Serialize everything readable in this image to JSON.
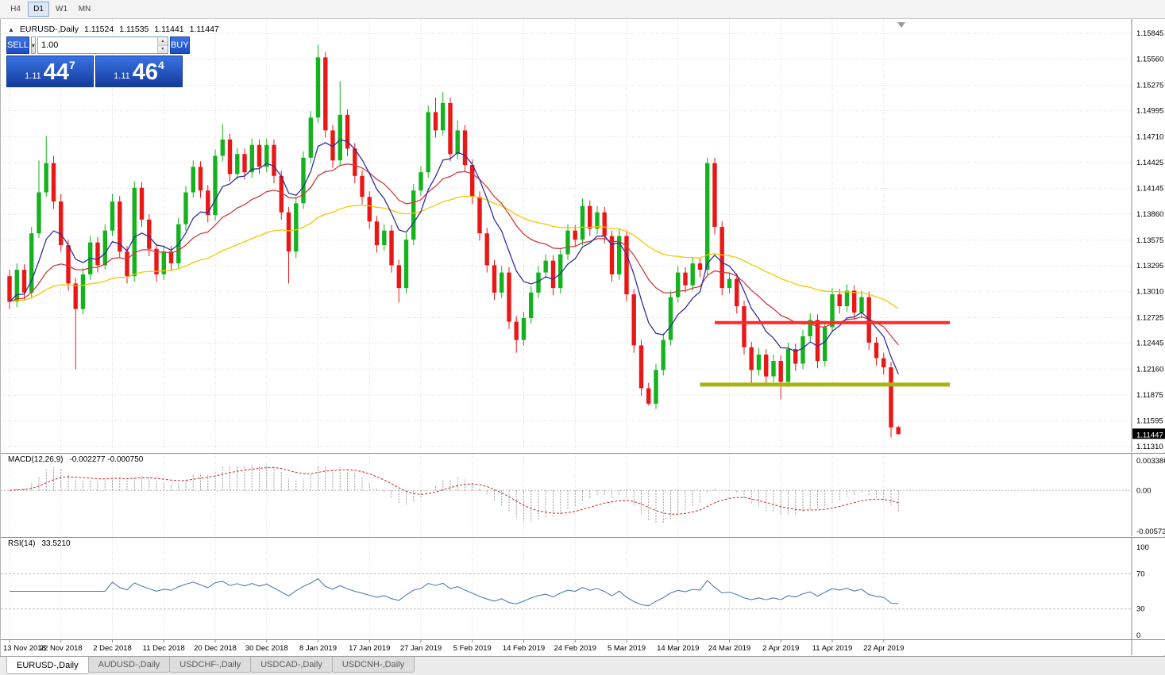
{
  "toolbar": {
    "timeframes": [
      {
        "label": "H4",
        "active": false
      },
      {
        "label": "D1",
        "active": true
      },
      {
        "label": "W1",
        "active": false
      },
      {
        "label": "MN",
        "active": false
      }
    ]
  },
  "chart": {
    "title_symbol": "EURUSD-,Daily",
    "ohlc": {
      "open": "1.11524",
      "high": "1.11535",
      "low": "1.11441",
      "close": "1.11447"
    },
    "current_price_tag": "1.11447",
    "price_axis_labels": [
      "1.15845",
      "1.15560",
      "1.15275",
      "1.14995",
      "1.14710",
      "1.14425",
      "1.14145",
      "1.13860",
      "1.13575",
      "1.13295",
      "1.13010",
      "1.12725",
      "1.12445",
      "1.12160",
      "1.11875",
      "1.11595",
      "1.11310"
    ],
    "price_axis_range": {
      "top": 1.15845,
      "bottom": 1.1131
    },
    "date_labels": [
      "13 Nov 2018",
      "22 Nov 2018",
      "2 Dec 2018",
      "11 Dec 2018",
      "20 Dec 2018",
      "30 Dec 2018",
      "8 Jan 2019",
      "17 Jan 2019",
      "27 Jan 2019",
      "5 Feb 2019",
      "14 Feb 2019",
      "24 Feb 2019",
      "5 Mar 2019",
      "14 Mar 2019",
      "24 Mar 2019",
      "2 Apr 2019",
      "11 Apr 2019",
      "22 Apr 2019"
    ],
    "candles_per_tick": 7
  },
  "one_click": {
    "sell_label": "SELL",
    "buy_label": "BUY",
    "volume": "1.00",
    "sell_price": {
      "small": "1.11",
      "big": "44",
      "sup": "7"
    },
    "buy_price": {
      "small": "1.11",
      "big": "46",
      "sup": "4"
    }
  },
  "chart_data": {
    "type": "candlestick",
    "symbol": "EURUSD-",
    "timeframe": "Daily",
    "colors": {
      "up": "#14b31e",
      "down": "#ea1717"
    },
    "moving_averages": [
      {
        "period": 8,
        "method": "ema",
        "color": "#2F2F9E"
      },
      {
        "period": 21,
        "method": "ema",
        "color": "#CE3C3C"
      },
      {
        "period": 55,
        "method": "ema",
        "color": "#F0CA00"
      }
    ],
    "hlines": [
      {
        "name": "resistance-line",
        "price": 1.1267,
        "color": "#FF2A2A",
        "width": 4,
        "from_index": 96,
        "to_index": 128
      },
      {
        "name": "support-line",
        "price": 1.1199,
        "color": "#A9B313",
        "width": 5,
        "from_index": 94,
        "to_index": 128
      }
    ],
    "candles": [
      [
        1.1318,
        1.1325,
        1.1282,
        1.129
      ],
      [
        1.129,
        1.1332,
        1.1284,
        1.1325
      ],
      [
        1.1325,
        1.1331,
        1.1292,
        1.13
      ],
      [
        1.13,
        1.1372,
        1.1295,
        1.1365
      ],
      [
        1.1365,
        1.1445,
        1.136,
        1.141
      ],
      [
        1.141,
        1.1472,
        1.1405,
        1.1442
      ],
      [
        1.1442,
        1.145,
        1.1392,
        1.14
      ],
      [
        1.14,
        1.1408,
        1.1345,
        1.1352
      ],
      [
        1.1352,
        1.1358,
        1.1302,
        1.131
      ],
      [
        1.131,
        1.1316,
        1.1216,
        1.1282
      ],
      [
        1.1282,
        1.1327,
        1.1276,
        1.132
      ],
      [
        1.132,
        1.1362,
        1.1314,
        1.1355
      ],
      [
        1.1355,
        1.1361,
        1.1322,
        1.133
      ],
      [
        1.133,
        1.1375,
        1.1325,
        1.1368
      ],
      [
        1.1368,
        1.1408,
        1.1362,
        1.14
      ],
      [
        1.14,
        1.1406,
        1.1338,
        1.1345
      ],
      [
        1.1345,
        1.1351,
        1.131,
        1.1318
      ],
      [
        1.1318,
        1.1422,
        1.1312,
        1.1415
      ],
      [
        1.1415,
        1.1421,
        1.1372,
        1.138
      ],
      [
        1.138,
        1.1386,
        1.134,
        1.1348
      ],
      [
        1.1348,
        1.1354,
        1.1312,
        1.132
      ],
      [
        1.132,
        1.1352,
        1.1314,
        1.1345
      ],
      [
        1.1345,
        1.1351,
        1.1324,
        1.1332
      ],
      [
        1.1332,
        1.1382,
        1.1326,
        1.1375
      ],
      [
        1.1375,
        1.1417,
        1.1368,
        1.141
      ],
      [
        1.141,
        1.1445,
        1.1404,
        1.1438
      ],
      [
        1.1438,
        1.1444,
        1.1404,
        1.1412
      ],
      [
        1.1412,
        1.1418,
        1.1377,
        1.1385
      ],
      [
        1.1385,
        1.1457,
        1.1379,
        1.145
      ],
      [
        1.145,
        1.1485,
        1.1444,
        1.1468
      ],
      [
        1.1468,
        1.1474,
        1.1422,
        1.143
      ],
      [
        1.143,
        1.1459,
        1.1424,
        1.1452
      ],
      [
        1.1452,
        1.1458,
        1.1424,
        1.1432
      ],
      [
        1.1432,
        1.1469,
        1.1426,
        1.1462
      ],
      [
        1.1462,
        1.1468,
        1.143,
        1.1438
      ],
      [
        1.1438,
        1.1469,
        1.1432,
        1.1462
      ],
      [
        1.1462,
        1.1468,
        1.142,
        1.1428
      ],
      [
        1.1428,
        1.1434,
        1.138,
        1.1388
      ],
      [
        1.1388,
        1.1394,
        1.131,
        1.1345
      ],
      [
        1.1345,
        1.1405,
        1.1338,
        1.1398
      ],
      [
        1.1398,
        1.1455,
        1.1392,
        1.1448
      ],
      [
        1.1448,
        1.1499,
        1.1442,
        1.1492
      ],
      [
        1.1492,
        1.1572,
        1.1486,
        1.1558
      ],
      [
        1.1558,
        1.1564,
        1.147,
        1.1478
      ],
      [
        1.1478,
        1.1484,
        1.1437,
        1.1445
      ],
      [
        1.1445,
        1.1532,
        1.144,
        1.1495
      ],
      [
        1.1495,
        1.1501,
        1.145,
        1.1458
      ],
      [
        1.1458,
        1.1464,
        1.142,
        1.1428
      ],
      [
        1.1428,
        1.1434,
        1.1397,
        1.1405
      ],
      [
        1.1405,
        1.1411,
        1.137,
        1.1378
      ],
      [
        1.1378,
        1.1384,
        1.1344,
        1.1352
      ],
      [
        1.1352,
        1.1375,
        1.1346,
        1.1368
      ],
      [
        1.1368,
        1.1374,
        1.1322,
        1.133
      ],
      [
        1.133,
        1.1336,
        1.1289,
        1.1305
      ],
      [
        1.1305,
        1.1365,
        1.1299,
        1.1358
      ],
      [
        1.1358,
        1.1419,
        1.1352,
        1.1412
      ],
      [
        1.1412,
        1.1439,
        1.1406,
        1.1432
      ],
      [
        1.1432,
        1.1505,
        1.1426,
        1.1498
      ],
      [
        1.1498,
        1.1514,
        1.147,
        1.1478
      ],
      [
        1.1478,
        1.152,
        1.1472,
        1.1508
      ],
      [
        1.1508,
        1.1514,
        1.1444,
        1.1452
      ],
      [
        1.1452,
        1.1489,
        1.1446,
        1.1478
      ],
      [
        1.1478,
        1.1484,
        1.1432,
        1.144
      ],
      [
        1.144,
        1.1446,
        1.1397,
        1.1405
      ],
      [
        1.1405,
        1.1411,
        1.1357,
        1.1365
      ],
      [
        1.1365,
        1.1371,
        1.1322,
        1.133
      ],
      [
        1.133,
        1.1336,
        1.1292,
        1.13
      ],
      [
        1.13,
        1.1329,
        1.1294,
        1.1322
      ],
      [
        1.1322,
        1.1328,
        1.126,
        1.1268
      ],
      [
        1.1268,
        1.1274,
        1.1234,
        1.1248
      ],
      [
        1.1248,
        1.1279,
        1.1242,
        1.1272
      ],
      [
        1.1272,
        1.1307,
        1.1266,
        1.13
      ],
      [
        1.13,
        1.1329,
        1.1294,
        1.1322
      ],
      [
        1.1322,
        1.1342,
        1.1316,
        1.1335
      ],
      [
        1.1335,
        1.1341,
        1.1297,
        1.1305
      ],
      [
        1.1305,
        1.1349,
        1.1299,
        1.1342
      ],
      [
        1.1342,
        1.1375,
        1.1336,
        1.1368
      ],
      [
        1.1368,
        1.1374,
        1.135,
        1.1358
      ],
      [
        1.1358,
        1.1403,
        1.1352,
        1.1395
      ],
      [
        1.1395,
        1.1401,
        1.1362,
        1.137
      ],
      [
        1.137,
        1.1395,
        1.1364,
        1.1388
      ],
      [
        1.1388,
        1.1394,
        1.1354,
        1.1362
      ],
      [
        1.1362,
        1.1368,
        1.1312,
        1.132
      ],
      [
        1.132,
        1.1369,
        1.1314,
        1.1362
      ],
      [
        1.1362,
        1.1368,
        1.129,
        1.1298
      ],
      [
        1.1298,
        1.1304,
        1.1234,
        1.1242
      ],
      [
        1.1242,
        1.1248,
        1.1187,
        1.1195
      ],
      [
        1.1195,
        1.1201,
        1.1176,
        1.1178
      ],
      [
        1.1178,
        1.1222,
        1.1172,
        1.1215
      ],
      [
        1.1215,
        1.1255,
        1.1209,
        1.1248
      ],
      [
        1.1248,
        1.1302,
        1.1242,
        1.1295
      ],
      [
        1.1295,
        1.1329,
        1.1289,
        1.1322
      ],
      [
        1.1322,
        1.1328,
        1.13,
        1.1308
      ],
      [
        1.1308,
        1.1339,
        1.1302,
        1.1332
      ],
      [
        1.1332,
        1.1338,
        1.1317,
        1.1325
      ],
      [
        1.1325,
        1.1448,
        1.1319,
        1.1442
      ],
      [
        1.1442,
        1.1448,
        1.1364,
        1.1372
      ],
      [
        1.1372,
        1.1378,
        1.1297,
        1.1305
      ],
      [
        1.1305,
        1.1322,
        1.1299,
        1.1315
      ],
      [
        1.1315,
        1.1321,
        1.1277,
        1.1285
      ],
      [
        1.1285,
        1.1291,
        1.1232,
        1.124
      ],
      [
        1.124,
        1.1246,
        1.1199,
        1.1215
      ],
      [
        1.1215,
        1.1239,
        1.1209,
        1.1232
      ],
      [
        1.1232,
        1.1238,
        1.12,
        1.1208
      ],
      [
        1.1208,
        1.1232,
        1.1202,
        1.1225
      ],
      [
        1.1225,
        1.1231,
        1.1183,
        1.1202
      ],
      [
        1.1202,
        1.1245,
        1.1196,
        1.1238
      ],
      [
        1.1238,
        1.1244,
        1.1214,
        1.1222
      ],
      [
        1.1222,
        1.1259,
        1.1216,
        1.1252
      ],
      [
        1.1252,
        1.1277,
        1.1246,
        1.127
      ],
      [
        1.127,
        1.1276,
        1.1217,
        1.1225
      ],
      [
        1.1225,
        1.1269,
        1.1219,
        1.1262
      ],
      [
        1.1262,
        1.1305,
        1.1256,
        1.1298
      ],
      [
        1.1298,
        1.1304,
        1.1277,
        1.1285
      ],
      [
        1.1285,
        1.1309,
        1.1279,
        1.1302
      ],
      [
        1.1302,
        1.1308,
        1.127,
        1.1278
      ],
      [
        1.1278,
        1.1302,
        1.1272,
        1.1295
      ],
      [
        1.1295,
        1.1301,
        1.1237,
        1.1245
      ],
      [
        1.1245,
        1.1251,
        1.122,
        1.1228
      ],
      [
        1.1228,
        1.1234,
        1.121,
        1.1218
      ],
      [
        1.1218,
        1.1224,
        1.1141,
        1.1152
      ],
      [
        1.11524,
        1.11535,
        1.11441,
        1.11447
      ]
    ]
  },
  "macd": {
    "label": "MACD(12,26,9)",
    "values_text": "-0.002277 -0.000750",
    "axis_labels": [
      "0.003386",
      "0.00",
      "-0.005737"
    ],
    "params": {
      "fast": 12,
      "slow": 26,
      "signal": 9
    },
    "histogram_color": "#9c9c9c",
    "signal_color": "#CC2929"
  },
  "rsi": {
    "label": "RSI(14)",
    "value_text": "33.5210",
    "period": 14,
    "levels": [
      70,
      30
    ],
    "axis_labels": [
      "100",
      "70",
      "30",
      "0"
    ],
    "line_color": "#4A7EBB"
  },
  "tabs": [
    {
      "label": "EURUSD-,Daily",
      "active": true
    },
    {
      "label": "AUDUSD-,Daily",
      "active": false
    },
    {
      "label": "USDCHF-,Daily",
      "active": false
    },
    {
      "label": "USDCAD-,Daily",
      "active": false
    },
    {
      "label": "USDCNH-,Daily",
      "active": false
    }
  ]
}
